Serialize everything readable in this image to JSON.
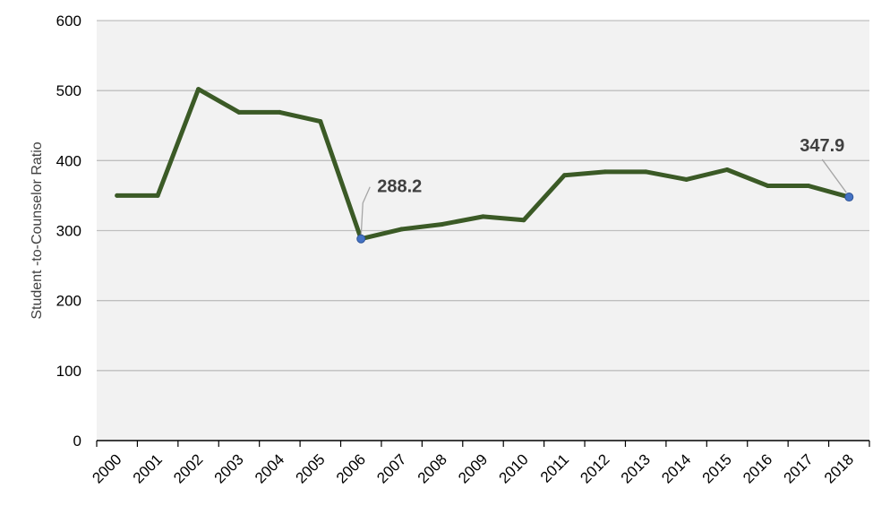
{
  "chart_data": {
    "type": "line",
    "title": "",
    "xlabel": "",
    "ylabel": "Student -to-Counselor Ratio",
    "ylim": [
      0,
      600
    ],
    "yticks": [
      0,
      100,
      200,
      300,
      400,
      500,
      600
    ],
    "grid": true,
    "legend": "none",
    "categories": [
      "2000",
      "2001",
      "2002",
      "2003",
      "2004",
      "2005",
      "2006",
      "2007",
      "2008",
      "2009",
      "2010",
      "2011",
      "2012",
      "2013",
      "2014",
      "2015",
      "2016",
      "2017",
      "2018"
    ],
    "series": [
      {
        "values": [
          350,
          350,
          502,
          469,
          469,
          456,
          288.2,
          302,
          309,
          320,
          315,
          379,
          384,
          384,
          373,
          387,
          364,
          364,
          347.9
        ]
      }
    ],
    "annotations": [
      {
        "index": 6,
        "text": "288.2"
      },
      {
        "index": 18,
        "text": "347.9"
      }
    ],
    "colors": {
      "line": "#3b5a26",
      "marker": "#4472c4",
      "plot_background": "#f2f2f2",
      "gridline": "#bfbfbf",
      "leader": "#a6a6a6"
    }
  }
}
